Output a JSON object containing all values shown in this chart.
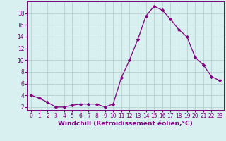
{
  "x": [
    0,
    1,
    2,
    3,
    4,
    5,
    6,
    7,
    8,
    9,
    10,
    11,
    12,
    13,
    14,
    15,
    16,
    17,
    18,
    19,
    20,
    21,
    22,
    23
  ],
  "y": [
    4.0,
    3.5,
    2.8,
    2.0,
    2.0,
    2.3,
    2.5,
    2.5,
    2.5,
    2.0,
    2.5,
    7.0,
    10.0,
    13.5,
    17.5,
    19.2,
    18.5,
    17.0,
    15.2,
    14.0,
    10.5,
    9.2,
    7.2,
    6.5
  ],
  "line_color": "#800080",
  "marker": "D",
  "marker_size": 2.2,
  "bg_color": "#d8f0f0",
  "grid_color": "#b0c8c8",
  "xlabel": "Windchill (Refroidissement éolien,°C)",
  "ylabel": "",
  "xlim": [
    -0.5,
    23.5
  ],
  "ylim": [
    1.5,
    20.0
  ],
  "xticks": [
    0,
    1,
    2,
    3,
    4,
    5,
    6,
    7,
    8,
    9,
    10,
    11,
    12,
    13,
    14,
    15,
    16,
    17,
    18,
    19,
    20,
    21,
    22,
    23
  ],
  "yticks": [
    2,
    4,
    6,
    8,
    10,
    12,
    14,
    16,
    18
  ],
  "font_color": "#800080",
  "tick_fontsize": 5.5,
  "label_fontsize": 6.5,
  "linewidth": 0.9,
  "grid_linewidth": 0.5
}
